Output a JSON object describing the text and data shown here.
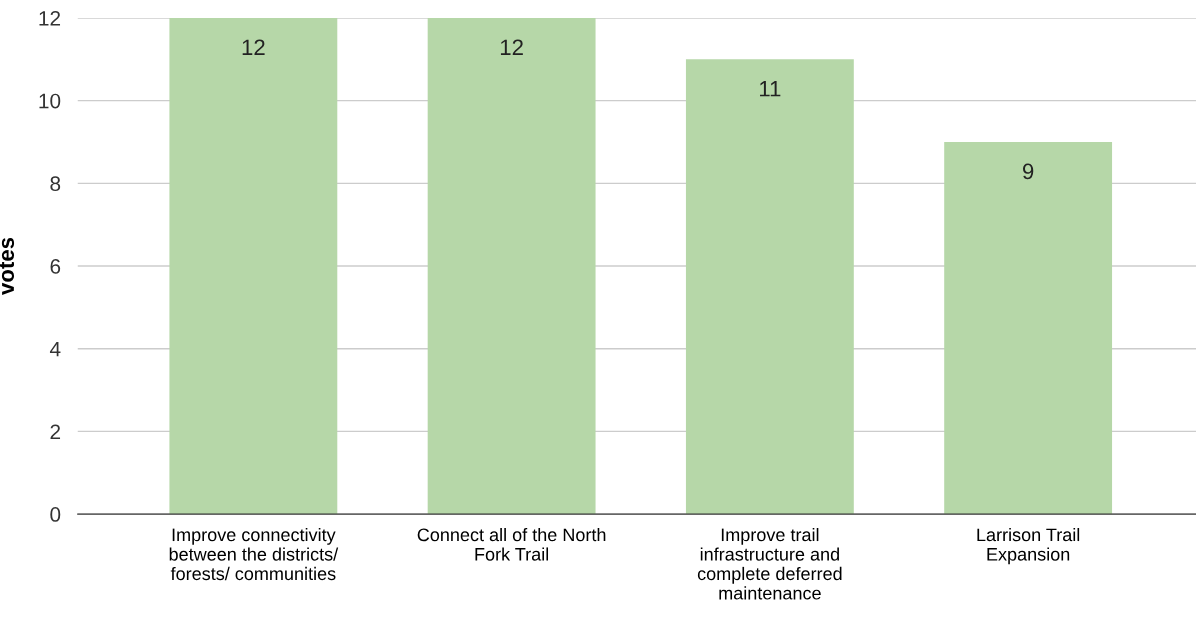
{
  "chart_data": {
    "type": "bar",
    "ylabel": "votes",
    "categories": [
      "Improve connectivity\nbetween the districts/\nforests/ communities",
      "Connect all of the North\nFork Trail",
      "Improve trail\ninfrastructure and\ncomplete deferred\nmaintenance",
      "Larrison Trail\nExpansion"
    ],
    "values": [
      12,
      12,
      11,
      9
    ],
    "color": "#b6d7a8",
    "ylim": [
      0,
      12
    ],
    "yticks": [
      0,
      2,
      4,
      6,
      8,
      10,
      12
    ],
    "grid": "y",
    "data_labels": true,
    "legend": false
  }
}
